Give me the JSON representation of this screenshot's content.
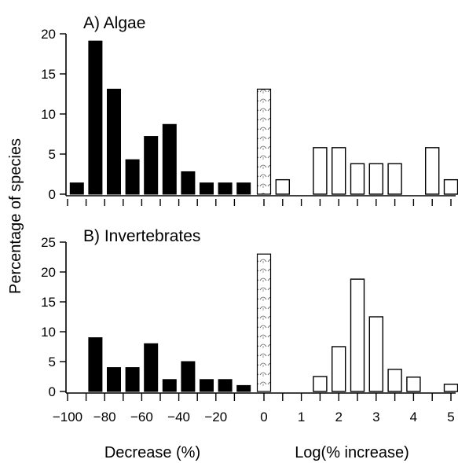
{
  "chart_data": {
    "type": "bar",
    "ylabel": "Percentage of species",
    "xlabel_left": "Decrease (%)",
    "xlabel_right": "Log(% increase)",
    "x_tick_labels_decrease": [
      "−100",
      "−80",
      "−60",
      "−40",
      "−20",
      "0"
    ],
    "x_tick_labels_increase": [
      "1",
      "2",
      "3",
      "4",
      "5"
    ],
    "colors": {
      "decrease": "#000000",
      "no_change": "#ffffff",
      "increase": "#ffffff",
      "stroke": "#000000",
      "pattern_marks": "#555555"
    },
    "legend": "none",
    "grid": false,
    "panels": [
      {
        "title": "A) Algae",
        "ylim": [
          0,
          20
        ],
        "yticks": [
          "0",
          "5",
          "10",
          "15",
          "20"
        ],
        "decrease": {
          "x": [
            -95,
            -85,
            -75,
            -65,
            -55,
            -45,
            -35,
            -25,
            -15,
            -5
          ],
          "values": [
            1.4,
            19.1,
            13.1,
            4.3,
            7.2,
            8.7,
            2.8,
            1.4,
            1.4,
            1.4
          ]
        },
        "no_change": {
          "x": 0,
          "value": 13.1
        },
        "increase": {
          "x": [
            0.5,
            1.5,
            2.0,
            2.5,
            3.0,
            3.5,
            4.0,
            4.5,
            5.0
          ],
          "values": [
            1.8,
            5.8,
            5.8,
            3.8,
            3.8,
            3.8,
            0,
            5.8,
            1.8
          ]
        }
      },
      {
        "title": "B) Invertebrates",
        "ylim": [
          0,
          25
        ],
        "yticks": [
          "0",
          "5",
          "10",
          "15",
          "20",
          "25"
        ],
        "decrease": {
          "x": [
            -95,
            -85,
            -75,
            -65,
            -55,
            -45,
            -35,
            -25,
            -15,
            -5
          ],
          "values": [
            0,
            9.0,
            4.0,
            4.0,
            8.0,
            2.0,
            5.0,
            2.0,
            2.0,
            1.0
          ]
        },
        "no_change": {
          "x": 0,
          "value": 23.0
        },
        "increase": {
          "x": [
            0.5,
            1.0,
            1.5,
            2.0,
            2.5,
            3.0,
            3.5,
            4.0,
            4.5,
            5.0
          ],
          "values": [
            0,
            0,
            2.5,
            7.5,
            18.8,
            12.5,
            3.7,
            2.4,
            0,
            1.2
          ]
        }
      }
    ]
  }
}
